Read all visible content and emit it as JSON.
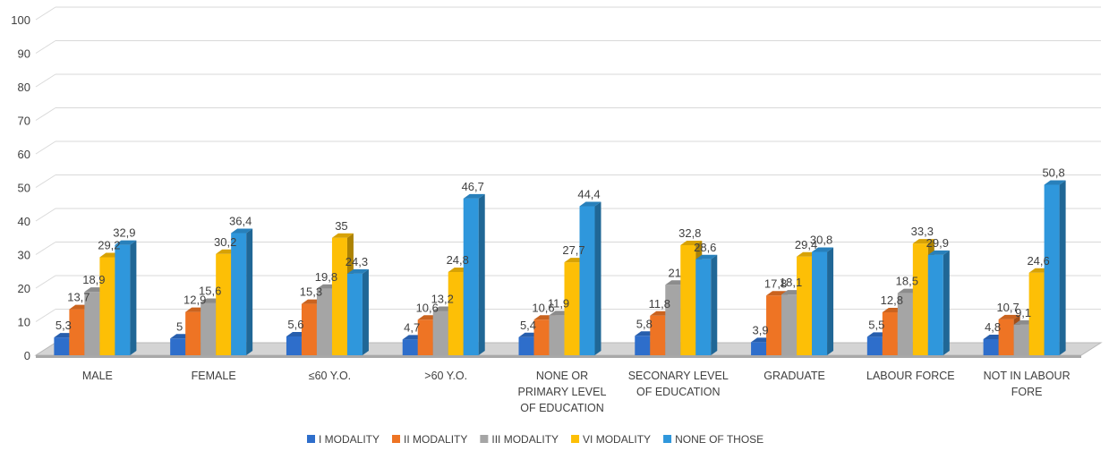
{
  "chart_data": {
    "type": "bar",
    "title": "",
    "xlabel": "",
    "ylabel": "",
    "ylim": [
      0,
      100
    ],
    "yticks": [
      0,
      10,
      20,
      30,
      40,
      50,
      60,
      70,
      80,
      90,
      100
    ],
    "grid": true,
    "legend_position": "bottom",
    "categories": [
      [
        "MALE"
      ],
      [
        "FEMALE"
      ],
      [
        "≤60 Y.O."
      ],
      [
        ">60 Y.O."
      ],
      [
        "NONE OR",
        "PRIMARY LEVEL",
        "OF EDUCATION"
      ],
      [
        "SECONARY LEVEL",
        "OF EDUCATION"
      ],
      [
        "GRADUATE"
      ],
      [
        "LABOUR FORCE"
      ],
      [
        "NOT IN LABOUR",
        "FORE"
      ]
    ],
    "series": [
      {
        "name": "I MODALITY",
        "color": "#2e6ecb",
        "values": [
          5.3,
          5,
          5.6,
          4.7,
          5.4,
          5.8,
          3.9,
          5.5,
          4.8
        ]
      },
      {
        "name": "II MODALITY",
        "color": "#ee7424",
        "values": [
          13.7,
          12.9,
          15.3,
          10.6,
          10.6,
          11.8,
          17.8,
          12.8,
          10.7
        ]
      },
      {
        "name": "III MODALITY",
        "color": "#a5a5a5",
        "values": [
          18.9,
          15.6,
          19.8,
          13.2,
          11.9,
          21,
          18.1,
          18.5,
          9.1
        ]
      },
      {
        "name": "VI MODALITY",
        "color": "#fdbf06",
        "values": [
          29.2,
          30.2,
          35,
          24.8,
          27.7,
          32.8,
          29.4,
          33.3,
          24.6
        ]
      },
      {
        "name": "NONE OF THOSE",
        "color": "#2f97dc",
        "values": [
          32.9,
          36.4,
          24.3,
          46.7,
          44.4,
          28.6,
          30.8,
          29.9,
          50.8
        ]
      }
    ]
  }
}
